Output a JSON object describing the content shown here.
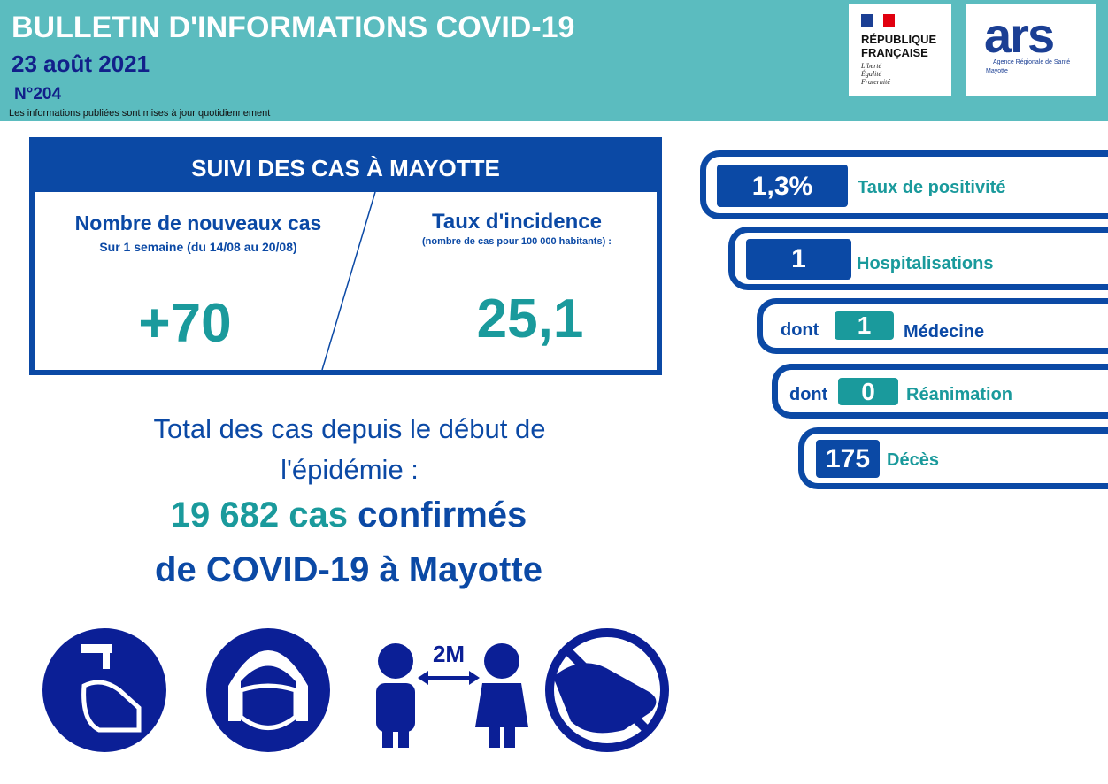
{
  "header": {
    "title": "BULLETIN D'INFORMATIONS COVID-19",
    "date": "23 août 2021",
    "number": "N°204",
    "note": "Les informations publiées sont mises à jour quotidiennement"
  },
  "logos": {
    "republique": {
      "line1": "RÉPUBLIQUE",
      "line2": "FRANÇAISE",
      "motto": [
        "Liberté",
        "Égalité",
        "Fraternité"
      ]
    },
    "ars": {
      "name": "ars",
      "agency": "Agence Régionale de Santé",
      "region": "Mayotte"
    }
  },
  "cases_box": {
    "title": "SUIVI DES CAS À MAYOTTE",
    "left": {
      "label": "Nombre de nouveaux cas",
      "sub": "Sur 1 semaine (du 14/08 au 20/08)",
      "value": "+70"
    },
    "right": {
      "label": "Taux d'incidence",
      "sub": "(nombre de cas pour 100 000 habitants) :",
      "value": "25,1"
    }
  },
  "total": {
    "intro": "Total des cas depuis le début de l'épidémie :",
    "count": "19 682 cas",
    "confirmed": "confirmés",
    "place": "de COVID-19 à Mayotte"
  },
  "indicators": [
    {
      "value": "1,3%",
      "label": "Taux de positivité"
    },
    {
      "value": "1",
      "label": "Hospitalisations"
    },
    {
      "prefix": "dont",
      "value": "1",
      "label": "Médecine"
    },
    {
      "prefix": "dont",
      "value": "0",
      "label": "Réanimation"
    },
    {
      "value": "175",
      "label": "Décès"
    }
  ],
  "icons": {
    "distance": "2M"
  }
}
